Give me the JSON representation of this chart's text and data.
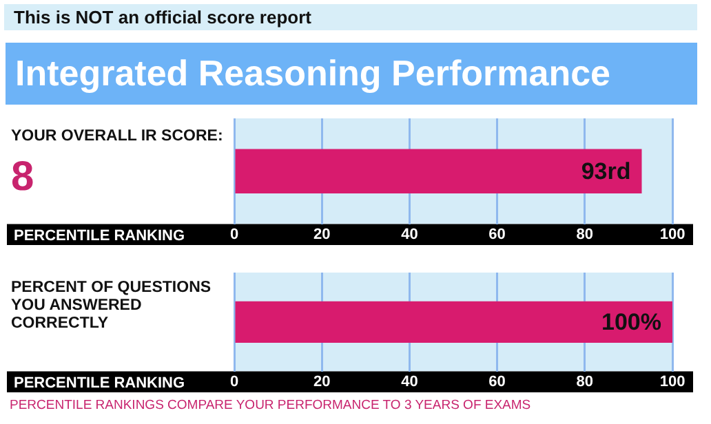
{
  "chart_data": [
    {
      "type": "bar",
      "orientation": "horizontal",
      "title": "Integrated Reasoning Performance",
      "ylabel": "YOUR OVERALL IR SCORE:",
      "xlabel": "PERCENTILE RANKING",
      "categories": [
        null
      ],
      "values": [
        93
      ],
      "value_labels": [
        "93rd"
      ],
      "color": "#d81b6e",
      "xlim": [
        0,
        100
      ],
      "xticks": [
        0,
        20,
        40,
        60,
        80,
        100
      ],
      "grid": "x",
      "annotations": [
        "This is NOT an official score report",
        "8"
      ]
    },
    {
      "type": "bar",
      "orientation": "horizontal",
      "ylabel": "PERCENT OF QUESTIONS YOU ANSWERED CORRECTLY",
      "xlabel": "PERCENTILE RANKING",
      "categories": [
        null
      ],
      "values": [
        100
      ],
      "value_labels": [
        "100%"
      ],
      "color": "#d81b6e",
      "xlim": [
        0,
        100
      ],
      "xticks": [
        0,
        20,
        40,
        60,
        80,
        100
      ],
      "grid": "x",
      "annotations": [
        "PERCENTILE RANKINGS COMPARE YOUR PERFORMANCE TO 3 YEARS OF EXAMS"
      ]
    }
  ]
}
